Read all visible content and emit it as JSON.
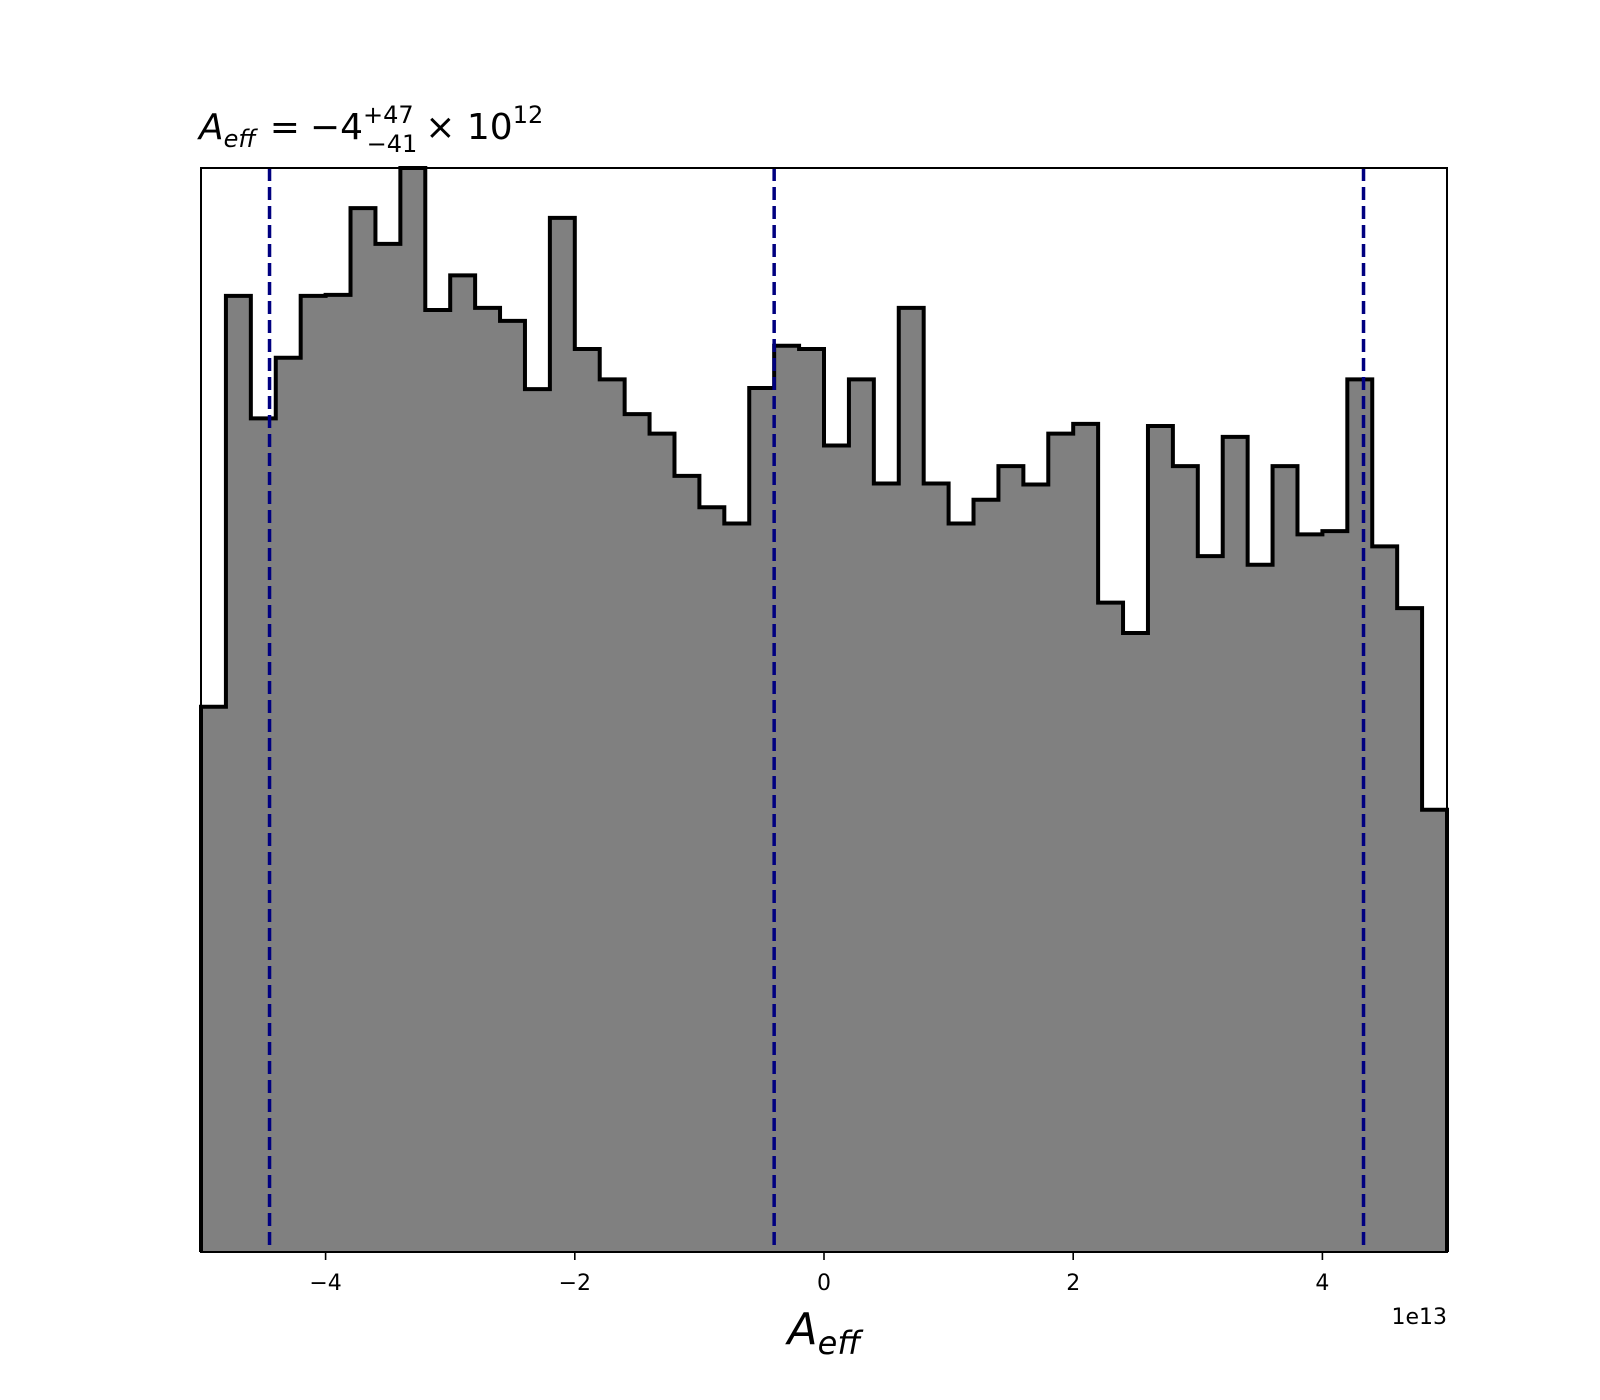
{
  "chart_data": {
    "type": "histogram",
    "title": {
      "symbol": "A",
      "symbol_sub": "eff",
      "equals": "=",
      "value": "−4",
      "plus": "+47",
      "minus": "−41",
      "multiplier": "× 10",
      "exponent": "12"
    },
    "xlabel": {
      "symbol": "A",
      "sub": "eff"
    },
    "offset_text": "1e13",
    "xlim": [
      -5.0,
      5.0
    ],
    "ylim": [
      0,
      1
    ],
    "y_ticks_shown": false,
    "grid": false,
    "x_ticks": [
      {
        "value": -4,
        "label": "−4"
      },
      {
        "value": -2,
        "label": "−2"
      },
      {
        "value": 0,
        "label": "0"
      },
      {
        "value": 2,
        "label": "2"
      },
      {
        "value": 4,
        "label": "4"
      }
    ],
    "bin_edges": [
      -5.0,
      -4.8,
      -4.6,
      -4.4,
      -4.2,
      -4.0,
      -3.8,
      -3.6,
      -3.4,
      -3.2,
      -3.0,
      -2.8,
      -2.6,
      -2.4,
      -2.2,
      -2.0,
      -1.8,
      -1.6,
      -1.4,
      -1.2,
      -1.0,
      -0.8,
      -0.6,
      -0.4,
      -0.2,
      0.0,
      0.2,
      0.4,
      0.6,
      0.8,
      1.0,
      1.2,
      1.4,
      1.6,
      1.8,
      2.0,
      2.2,
      2.4,
      2.6,
      2.8,
      3.0,
      3.2,
      3.4,
      3.6,
      3.8,
      4.0,
      4.2,
      4.4,
      4.6,
      4.8,
      5.0
    ],
    "counts": [
      0.503,
      0.882,
      0.769,
      0.825,
      0.882,
      0.883,
      0.963,
      0.93,
      1.0,
      0.869,
      0.901,
      0.871,
      0.859,
      0.796,
      0.954,
      0.833,
      0.805,
      0.773,
      0.755,
      0.716,
      0.687,
      0.672,
      0.797,
      0.836,
      0.833,
      0.744,
      0.805,
      0.709,
      0.871,
      0.709,
      0.672,
      0.694,
      0.725,
      0.708,
      0.755,
      0.764,
      0.599,
      0.571,
      0.762,
      0.725,
      0.642,
      0.752,
      0.634,
      0.725,
      0.662,
      0.665,
      0.805,
      0.651,
      0.594,
      0.408
    ],
    "fill_color": "#808080",
    "edge_color": "#000000",
    "vlines": [
      {
        "value": -4.45,
        "role": "lower"
      },
      {
        "value": -0.4,
        "role": "median"
      },
      {
        "value": 4.33,
        "role": "upper"
      }
    ],
    "vline_color": "#000080"
  }
}
